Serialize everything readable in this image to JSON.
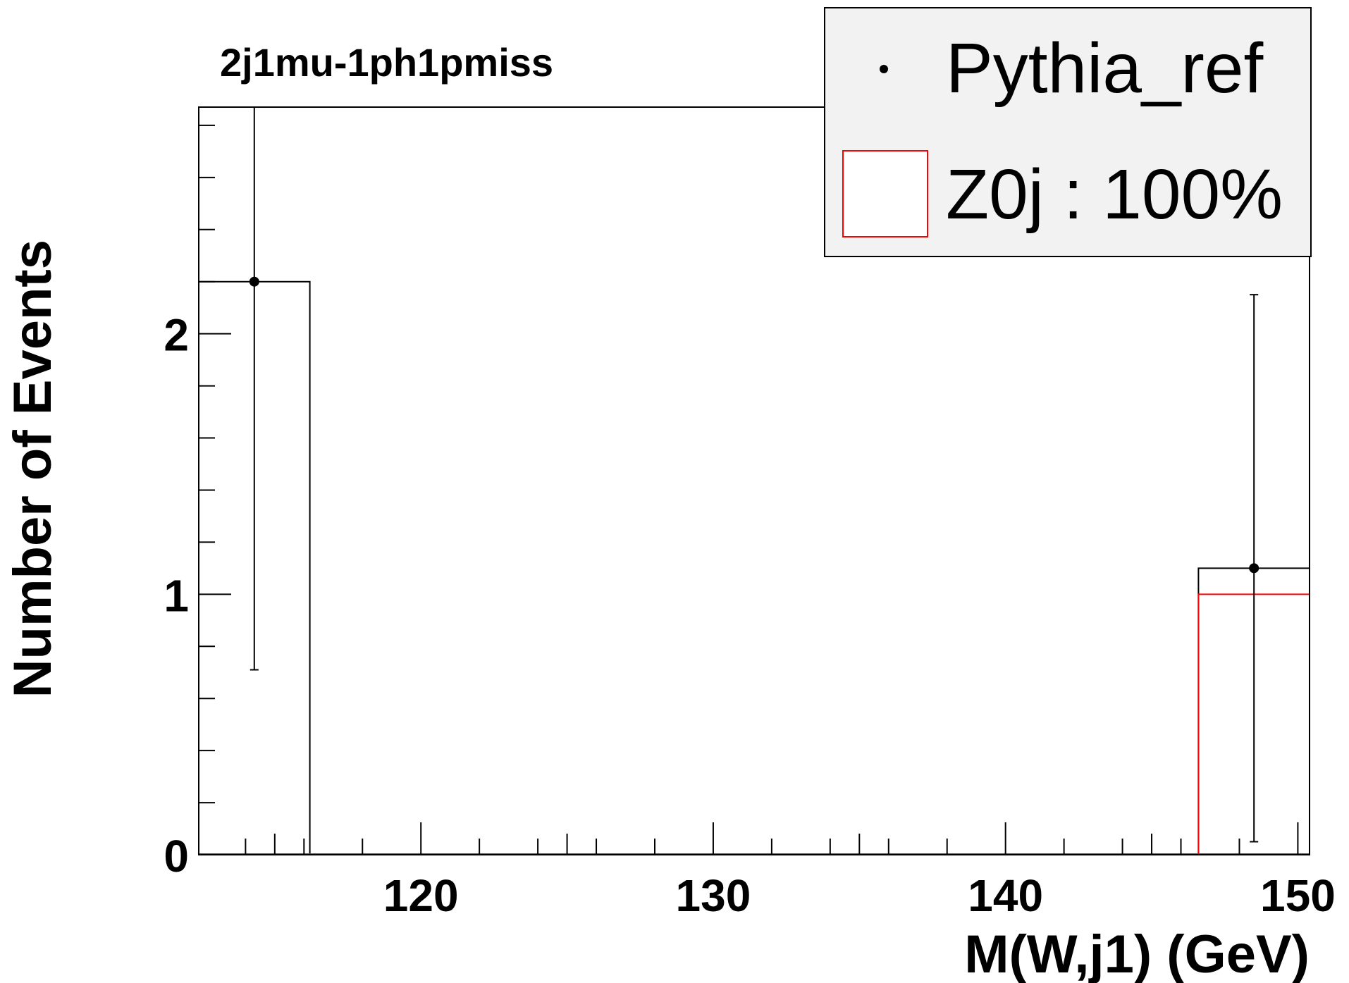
{
  "chart_data": {
    "type": "bar",
    "title": "2j1mu-1ph1pmiss",
    "xlabel": "M(W,j1) (GeV)",
    "ylabel": "Number of Events",
    "xlim": [
      112.4,
      150.4
    ],
    "ylim": [
      0,
      2.87
    ],
    "x_ticks": [
      {
        "value": 120,
        "label": "120"
      },
      {
        "value": 130,
        "label": "130"
      },
      {
        "value": 140,
        "label": "140"
      },
      {
        "value": 150,
        "label": "150"
      }
    ],
    "y_ticks": [
      {
        "value": 0,
        "label": "0"
      },
      {
        "value": 1,
        "label": "1"
      },
      {
        "value": 2,
        "label": "2"
      }
    ],
    "bin_width": 3.8,
    "series": [
      {
        "name": "Pythia_ref",
        "kind": "points_with_errors",
        "color": "#000000",
        "x": [
          114.3,
          148.5
        ],
        "values": [
          2.2,
          1.1
        ],
        "err_low": [
          0.71,
          0.05
        ],
        "err_high": [
          2.87,
          2.15
        ],
        "outline_bins": [
          {
            "x0": 112.4,
            "x1": 116.2,
            "value": 2.2
          },
          {
            "x0": 146.6,
            "x1": 150.4,
            "value": 1.1
          }
        ]
      },
      {
        "name": "Z0j",
        "kind": "stacked_histogram",
        "color": "#ff0000",
        "bins": [
          {
            "x0": 146.6,
            "x1": 150.4,
            "value": 1.0
          }
        ]
      }
    ],
    "legend": {
      "position": "top-right",
      "entries": [
        {
          "label": "Pythia_ref",
          "marker": "point",
          "color": "#000000"
        },
        {
          "label": "Z0j : 100%",
          "marker": "box",
          "color": "#ff0000"
        }
      ]
    }
  }
}
